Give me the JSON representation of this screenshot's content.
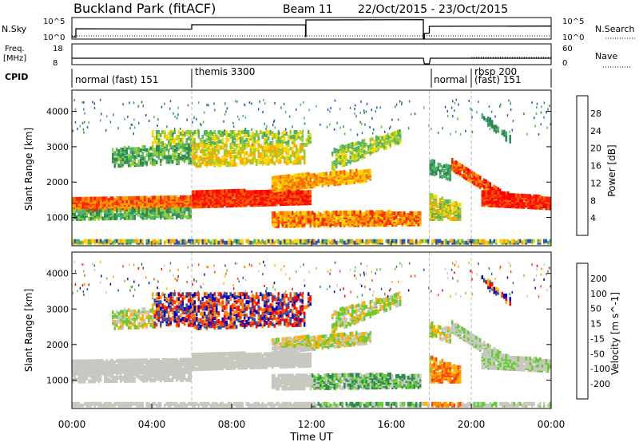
{
  "header": {
    "station": "Buckland Park (fitACF)",
    "beam": "Beam 11",
    "dates": "22/Oct/2015 - 23/Oct/2015"
  },
  "nsky_panel": {
    "label": "N.Sky",
    "ytick_top": "10^5",
    "ytick_bottom": "10^0",
    "right_label": "N.Search",
    "right_tick_top": "10^5",
    "right_tick_bottom": "10^0"
  },
  "freq_panel": {
    "label_line1": "Freq.",
    "label_line2": "[MHz]",
    "ytick_top": "18",
    "ytick_bottom": "8",
    "right_label": "Nave",
    "right_tick_top": "60",
    "right_tick_bottom": "0"
  },
  "cpid": {
    "label": "CPID",
    "segments": [
      {
        "name": "normal (fast) 151",
        "start_h": 0,
        "end_h": 6
      },
      {
        "name": "themis 3300",
        "start_h": 6,
        "end_h": 17.9
      },
      {
        "name": "normal",
        "start_h": 17.9,
        "end_h": 20
      },
      {
        "name": "rbsp 200",
        "start_h": 20,
        "end_h": 24
      },
      {
        "name": "(fast) 151",
        "start_h": 20,
        "end_h": 24
      }
    ]
  },
  "colors": {
    "power": [
      "#0000ff",
      "#2a52b8",
      "#2e8b57",
      "#4fb36a",
      "#9acd32",
      "#ffd700",
      "#ffa500",
      "#ff6600",
      "#ff2200",
      "#ff0000"
    ],
    "velocity": [
      "#ff0000",
      "#ff4500",
      "#ff8c00",
      "#ffb000",
      "#c8c8c0",
      "#c8c8c0",
      "#66cc33",
      "#2e8b57",
      "#2a52b8",
      "#0000cd"
    ]
  },
  "chart_data": [
    {
      "type": "heatmap",
      "name": "power",
      "ylabel": "Slant Range [km]",
      "ylim": [
        200,
        4600
      ],
      "yticks": [
        1000,
        2000,
        3000,
        4000
      ],
      "colorbar": {
        "label": "Power [dB]",
        "ticks": [
          4,
          8,
          12,
          16,
          20,
          24,
          28
        ],
        "range": [
          0,
          32
        ]
      }
    },
    {
      "type": "heatmap",
      "name": "velocity",
      "ylabel": "Slant Range [km]",
      "xlabel": "Time UT",
      "ylim": [
        200,
        4600
      ],
      "yticks": [
        1000,
        2000,
        3000,
        4000
      ],
      "xticks": [
        "00:00",
        "04:00",
        "08:00",
        "12:00",
        "16:00",
        "20:00",
        "00:00"
      ],
      "xlim_h": [
        0,
        24
      ],
      "colorbar": {
        "label": "Velocity [m s^-1]",
        "ticks": [
          "200",
          "100",
          "50",
          "15",
          "-15",
          "-50",
          "-100",
          "-200"
        ]
      }
    }
  ]
}
